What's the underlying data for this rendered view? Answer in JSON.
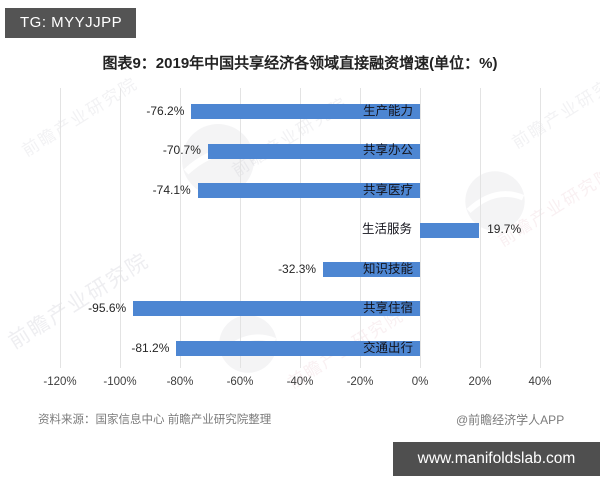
{
  "badges": {
    "tg": "TG: MYYJJPP",
    "site": "www.manifoldslab.com"
  },
  "chart_data": {
    "type": "bar",
    "orientation": "horizontal",
    "title": "图表9：2019年中国共享经济各领域直接融资增速(单位：%)",
    "categories": [
      "生产能力",
      "共享办公",
      "共享医疗",
      "生活服务",
      "知识技能",
      "共享住宿",
      "交通出行"
    ],
    "values": [
      -76.2,
      -70.7,
      -74.1,
      19.7,
      -32.3,
      -95.6,
      -81.2
    ],
    "value_labels": [
      "-76.2%",
      "-70.7%",
      "-74.1%",
      "19.7%",
      "-32.3%",
      "-95.6%",
      "-81.2%"
    ],
    "xlabel": "",
    "ylabel": "",
    "xlim": [
      -120,
      40
    ],
    "x_tick_values": [
      -120,
      -100,
      -80,
      -60,
      -40,
      -20,
      0,
      20,
      40
    ],
    "x_tick_labels": [
      "-120%",
      "-100%",
      "-80%",
      "-60%",
      "-40%",
      "-20%",
      "0%",
      "20%",
      "40%"
    ],
    "bar_color": "#4d86d2",
    "grid": true,
    "legend": false
  },
  "footer": {
    "source": "资料来源：国家信息中心 前瞻产业研究院整理",
    "credit": "@前瞻经济学人APP"
  },
  "watermark": {
    "text": "前瞻产业研究院",
    "icon": "globe-watermark-icon"
  }
}
